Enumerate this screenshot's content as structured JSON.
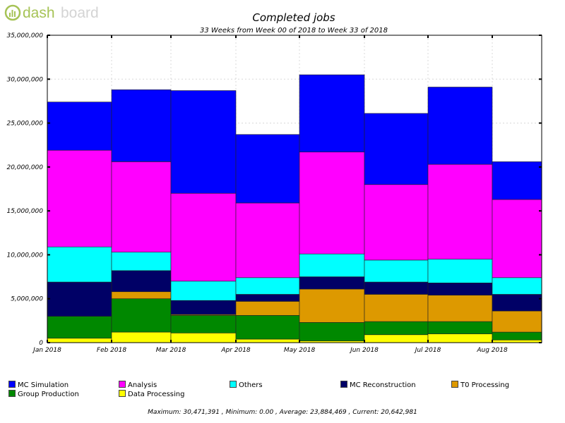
{
  "brand": {
    "logo_text": "dashboard",
    "logo_color": "#a6c356"
  },
  "chart_data": {
    "type": "bar",
    "stacked": true,
    "title": "Completed jobs",
    "subtitle": "33 Weeks from Week 00 of 2018 to Week 33 of 2018",
    "xlabel": "",
    "ylabel": "",
    "ylim": [
      0,
      35000000
    ],
    "yticks": [
      "0",
      "5,000,000",
      "10,000,000",
      "15,000,000",
      "20,000,000",
      "25,000,000",
      "30,000,000",
      "35,000,000"
    ],
    "x_tick_labels": [
      "Jan 2018",
      "Feb 2018",
      "Mar 2018",
      "Apr 2018",
      "May 2018",
      "Jun 2018",
      "Jul 2018",
      "Aug 2018"
    ],
    "grid": true,
    "legend_position": "bottom",
    "categories": [
      "Jan 2018",
      "Feb 2018",
      "Mar 2018",
      "Apr 2018",
      "May 2018",
      "Jun 2018",
      "Jul 2018",
      "Aug 2018"
    ],
    "series": [
      {
        "name": "Data Processing",
        "color": "#ffff00",
        "values": [
          500000,
          1200000,
          1100000,
          400000,
          200000,
          900000,
          1000000,
          300000
        ]
      },
      {
        "name": "Group Production",
        "color": "#008800",
        "values": [
          2500000,
          3800000,
          2000000,
          2700000,
          2100000,
          1500000,
          1400000,
          900000
        ]
      },
      {
        "name": "T0 Processing",
        "color": "#dd9900",
        "values": [
          0,
          800000,
          100000,
          1600000,
          3800000,
          3100000,
          3000000,
          2400000
        ]
      },
      {
        "name": "MC Reconstruction",
        "color": "#000066",
        "values": [
          3900000,
          2400000,
          1600000,
          800000,
          1400000,
          1400000,
          1400000,
          1900000
        ]
      },
      {
        "name": "Others",
        "color": "#00ffff",
        "values": [
          4000000,
          2100000,
          2200000,
          1900000,
          2600000,
          2500000,
          2700000,
          1900000
        ]
      },
      {
        "name": "Analysis",
        "color": "#ff00ff",
        "values": [
          11000000,
          10300000,
          10000000,
          8500000,
          11600000,
          8600000,
          10800000,
          8900000
        ]
      },
      {
        "name": "MC Simulation",
        "color": "#0000ff",
        "values": [
          5500000,
          8200000,
          11700000,
          7800000,
          8800000,
          8100000,
          8800000,
          4300000
        ]
      }
    ]
  },
  "legend": [
    {
      "label": "MC Simulation",
      "color": "#0000ff"
    },
    {
      "label": "Analysis",
      "color": "#ff00ff"
    },
    {
      "label": "Others",
      "color": "#00ffff"
    },
    {
      "label": "MC Reconstruction",
      "color": "#000066"
    },
    {
      "label": "T0 Processing",
      "color": "#dd9900"
    },
    {
      "label": "Group Production",
      "color": "#008800"
    },
    {
      "label": "Data Processing",
      "color": "#ffff00"
    }
  ],
  "footer": "Maximum: 30,471,391 , Minimum: 0.00 , Average: 23,884,469 , Current: 20,642,981"
}
